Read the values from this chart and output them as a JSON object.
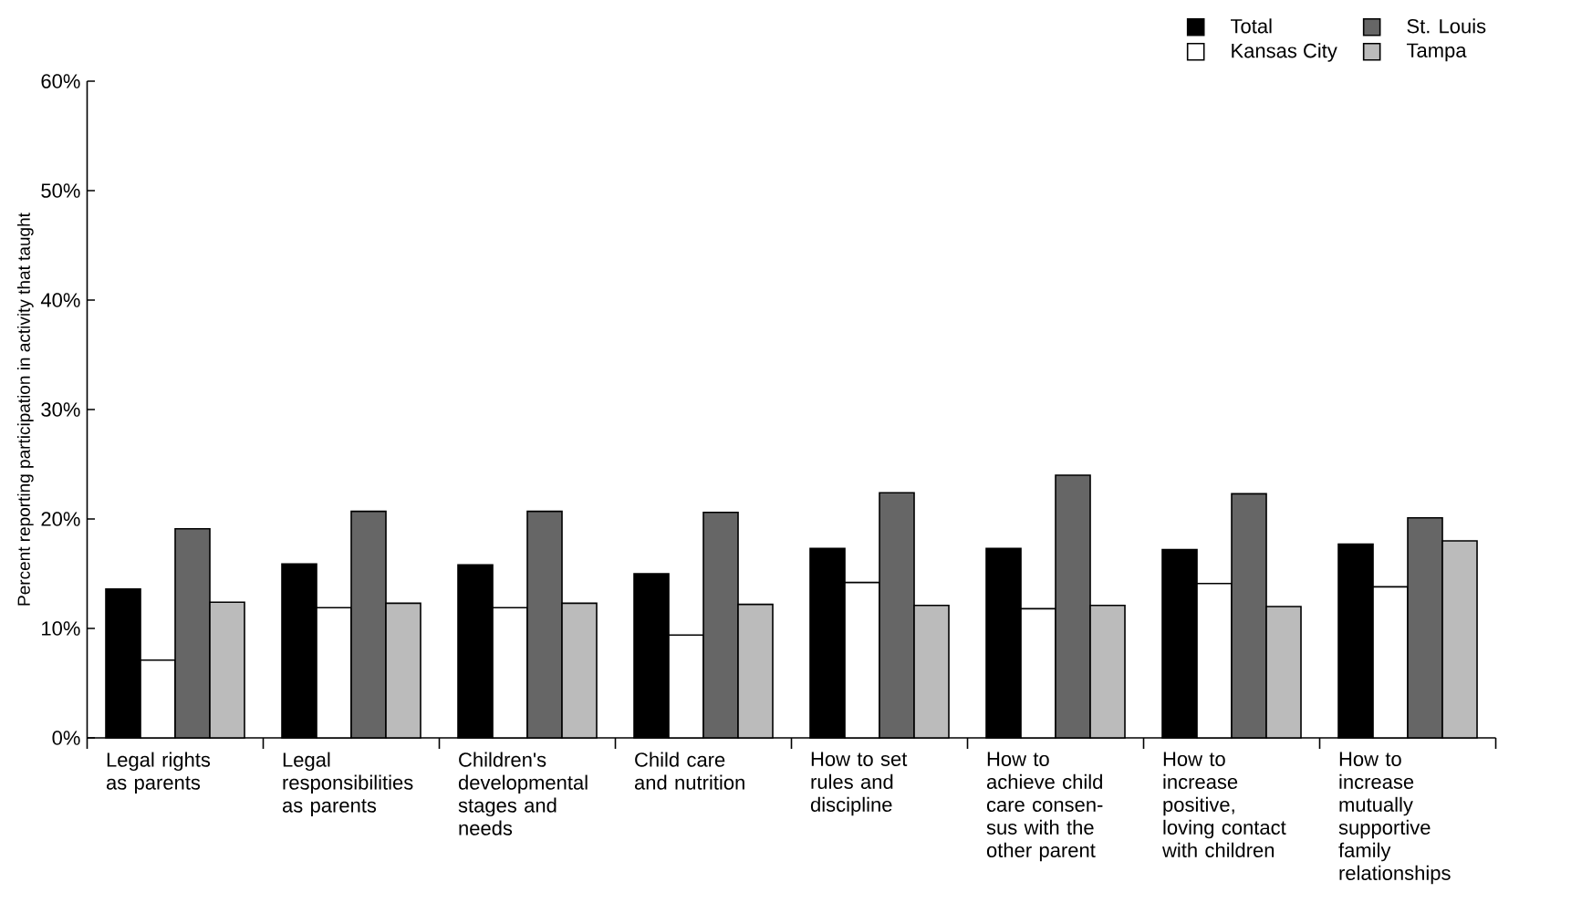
{
  "chart_data": {
    "type": "bar",
    "ylabel": "Percent reporting participation in activity that taught",
    "categories": [
      "Legal rights as parents",
      "Legal responsibilities as parents",
      "Children's developmental stages and needs",
      "Child care and nutrition",
      "How to set rules and discipline",
      "How to achieve child care consen- sus with the other parent",
      "How to increase positive, loving contact with children",
      "How to increase mutually supportive family relationships"
    ],
    "series": [
      {
        "name": "Total",
        "color": "#000000",
        "values": [
          13.6,
          15.9,
          15.8,
          15.0,
          17.3,
          17.3,
          17.2,
          17.7
        ]
      },
      {
        "name": "Kansas City",
        "color": "#ffffff",
        "values": [
          7.1,
          11.9,
          11.9,
          9.4,
          14.2,
          11.8,
          14.1,
          13.8
        ]
      },
      {
        "name": "St. Louis",
        "color": "#666666",
        "values": [
          19.1,
          20.7,
          20.7,
          20.6,
          22.4,
          24.0,
          22.3,
          20.1
        ]
      },
      {
        "name": "Tampa",
        "color": "#bbbbbb",
        "values": [
          12.4,
          12.3,
          12.3,
          12.2,
          12.1,
          12.1,
          12.0,
          18.0
        ]
      }
    ],
    "ylim": [
      0,
      60
    ],
    "yticks": [
      {
        "value": 0,
        "label": "0%"
      },
      {
        "value": 10,
        "label": "10%"
      },
      {
        "value": 20,
        "label": "20%"
      },
      {
        "value": 30,
        "label": "30%"
      },
      {
        "value": 40,
        "label": "40%"
      },
      {
        "value": 50,
        "label": "50%"
      },
      {
        "value": 60,
        "label": "60%"
      }
    ],
    "legend": "top right"
  }
}
